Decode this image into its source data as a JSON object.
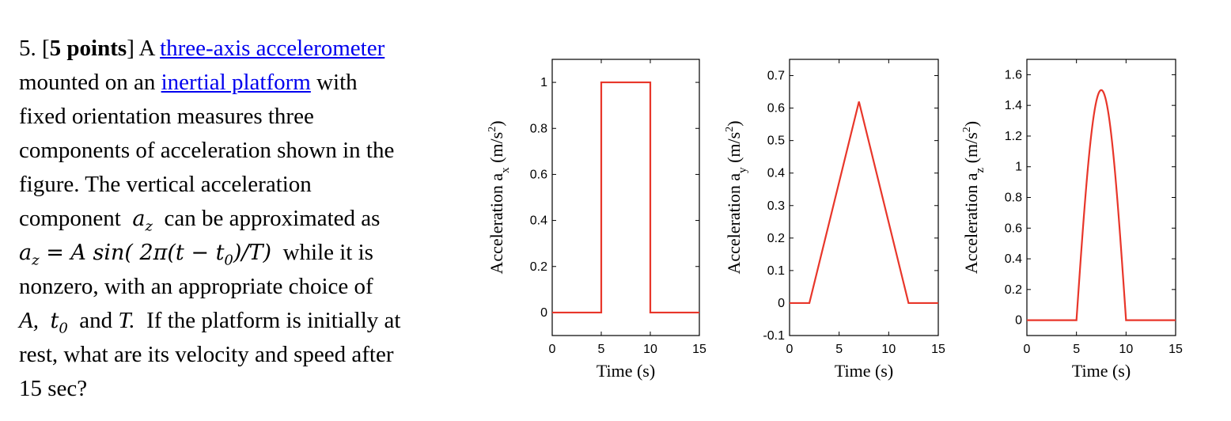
{
  "problem": {
    "number": "5.",
    "points": "5 points",
    "intro": "A",
    "link1": "three-axis accelerometer",
    "mounted": "mounted on an",
    "link2": "inertial platform",
    "with": "with",
    "line3": "fixed orientation measures three",
    "line4": "components of acceleration shown in the",
    "line5": "figure.  The vertical acceleration",
    "line6a": "component",
    "line6b": "can be approximated as",
    "line7b": "while it is",
    "line8": "nonzero, with an appropriate choice of",
    "line9_A": "A,",
    "line9_and": "and",
    "line9_T": "T.",
    "line9_rest": "If the platform is initially at",
    "line10": "rest, what are its velocity and speed after",
    "line11": "15 sec?",
    "math_az": "a",
    "math_z": "z",
    "math_eq_lhs": "a",
    "math_eq_rhs": "= A sin( 2π(t − t",
    "math_eq_sub0": "0",
    "math_eq_tail": ")/T)",
    "math_t0": "t",
    "math_t0_sub": "0"
  },
  "chart_data": [
    {
      "type": "line",
      "x": [
        0,
        5,
        5,
        10,
        10,
        15
      ],
      "y": [
        0,
        0,
        1,
        1,
        0,
        0
      ],
      "xlim": [
        0,
        15
      ],
      "ylim": [
        -0.1,
        1.1
      ],
      "xticks": [
        0,
        5,
        10,
        15
      ],
      "xtick_labels": [
        "0",
        "5",
        "10",
        "15"
      ],
      "yticks": [
        0,
        0.2,
        0.4,
        0.6,
        0.8,
        1
      ],
      "ytick_labels": [
        "0",
        "0.2",
        "0.4",
        "0.6",
        "0.8",
        "1"
      ],
      "xlabel": "Time (s)",
      "ylabel": "Acceleration a",
      "ylabel_sub": "x",
      "ylabel_unit": "(m/s",
      "ylabel_sup": "2",
      "ylabel_close": ")",
      "color": "#e8362a"
    },
    {
      "type": "line",
      "x": [
        0,
        2,
        7,
        12,
        15
      ],
      "y": [
        0,
        0,
        0.62,
        0,
        0
      ],
      "xlim": [
        0,
        15
      ],
      "ylim": [
        -0.1,
        0.75
      ],
      "xticks": [
        0,
        5,
        10,
        15
      ],
      "xtick_labels": [
        "0",
        "5",
        "10",
        "15"
      ],
      "yticks": [
        -0.1,
        0,
        0.1,
        0.2,
        0.3,
        0.4,
        0.5,
        0.6,
        0.7
      ],
      "ytick_labels": [
        "-0.1",
        "0",
        "0.1",
        "0.2",
        "0.3",
        "0.4",
        "0.5",
        "0.6",
        "0.7"
      ],
      "xlabel": "Time (s)",
      "ylabel": "Acceleration a",
      "ylabel_sub": "y",
      "ylabel_unit": "(m/s",
      "ylabel_sup": "2",
      "ylabel_close": ")",
      "color": "#e8362a"
    },
    {
      "type": "line",
      "x": [
        0,
        5,
        5.5,
        6,
        6.5,
        7,
        7.5,
        8,
        8.5,
        9,
        9.5,
        10,
        15
      ],
      "y": [
        0,
        0,
        0.463,
        0.882,
        1.214,
        1.427,
        1.5,
        1.427,
        1.214,
        0.882,
        0.463,
        0,
        0
      ],
      "xlim": [
        0,
        15
      ],
      "ylim": [
        -0.1,
        1.7
      ],
      "xticks": [
        0,
        5,
        10,
        15
      ],
      "xtick_labels": [
        "0",
        "5",
        "10",
        "15"
      ],
      "yticks": [
        0,
        0.2,
        0.4,
        0.6,
        0.8,
        1,
        1.2,
        1.4,
        1.6
      ],
      "ytick_labels": [
        "0",
        "0.2",
        "0.4",
        "0.6",
        "0.8",
        "1",
        "1.2",
        "1.4",
        "1.6"
      ],
      "xlabel": "Time (s)",
      "ylabel": "Acceleration a",
      "ylabel_sub": "z",
      "ylabel_unit": "(m/s",
      "ylabel_sup": "2",
      "ylabel_close": ")",
      "color": "#e8362a"
    }
  ]
}
